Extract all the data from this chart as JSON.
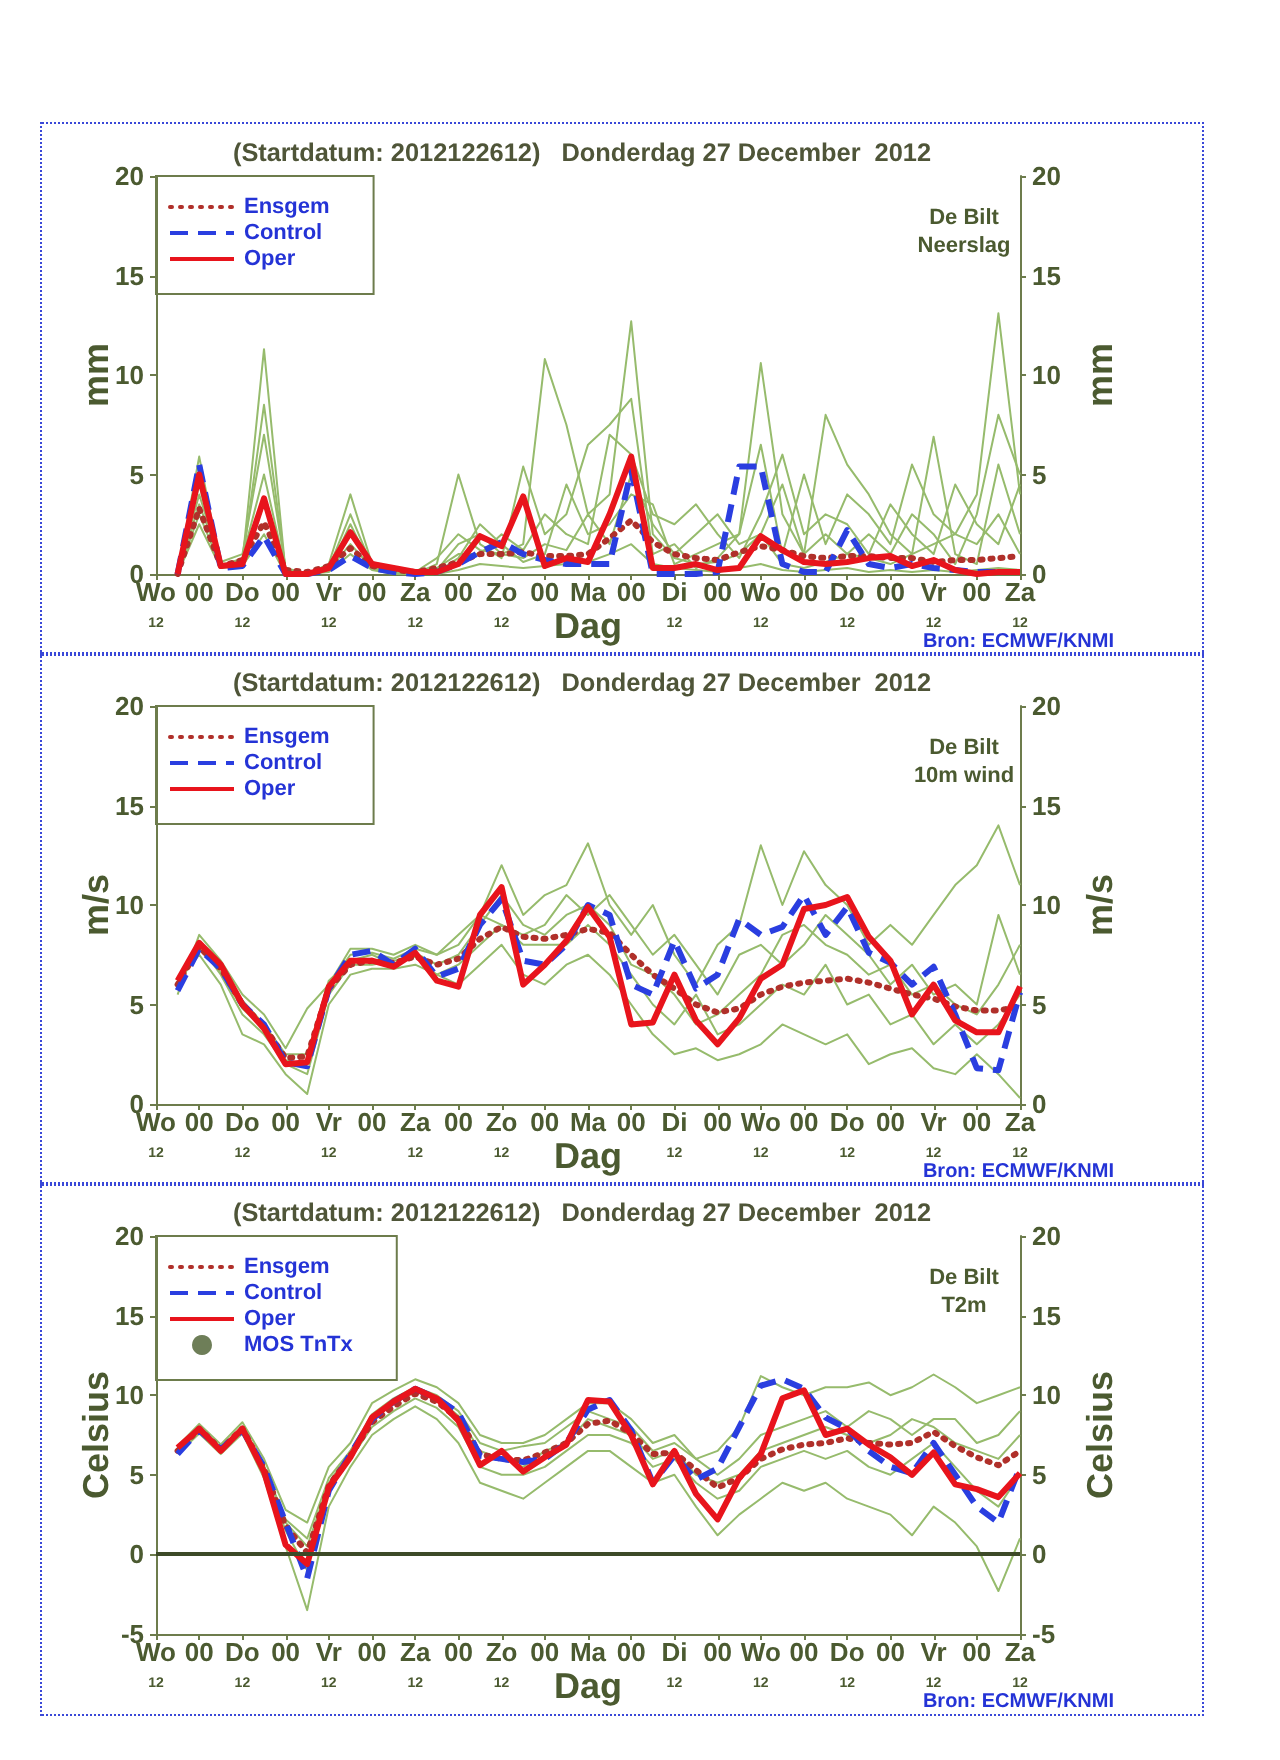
{
  "chart_data": [
    {
      "type": "line",
      "title": "(Startdatum: 2012122612)   Donderdag 27 December  2012",
      "xlabel": "Dag",
      "ylabel": "mm",
      "y2label": "mm",
      "annotations": [
        "De Bilt\nNeerslag",
        "Bron: ECMWF/KNMI"
      ],
      "legend": "top left",
      "marker": "none",
      "line_style": "solid",
      "x": [
        "2012-12-26T18:00",
        "2012-12-27T00:00",
        "2012-12-27T06:00",
        "2012-12-27T12:00",
        "2012-12-27T18:00",
        "2012-12-28T00:00",
        "2012-12-28T06:00",
        "2012-12-28T12:00",
        "2012-12-28T18:00",
        "2012-12-29T00:00",
        "2012-12-29T06:00",
        "2012-12-29T12:00",
        "2012-12-29T18:00",
        "2012-12-30T00:00",
        "2012-12-30T06:00",
        "2012-12-30T12:00",
        "2012-12-30T18:00",
        "2012-12-31T00:00",
        "2012-12-31T06:00",
        "2012-12-31T12:00",
        "2012-12-31T18:00",
        "2013-01-01T00:00",
        "2013-01-01T06:00",
        "2013-01-01T12:00",
        "2013-01-01T18:00",
        "2013-01-02T00:00",
        "2013-01-02T06:00",
        "2013-01-02T12:00",
        "2013-01-02T18:00",
        "2013-01-03T00:00",
        "2013-01-03T06:00",
        "2013-01-03T12:00",
        "2013-01-03T18:00",
        "2013-01-04T00:00",
        "2013-01-04T06:00",
        "2013-01-04T12:00",
        "2013-01-04T18:00",
        "2013-01-05T00:00",
        "2013-01-05T06:00",
        "2013-01-05T12:00"
      ],
      "xlim": [
        "2012-12-26T12:00",
        "2013-01-05T12:00"
      ],
      "xticks": [
        {
          "value": "2012-12-26T12:00",
          "label": "Wo\n12"
        },
        {
          "value": "2012-12-27T00:00",
          "label": "00"
        },
        {
          "value": "2012-12-27T12:00",
          "label": "Do\n12"
        },
        {
          "value": "2012-12-28T00:00",
          "label": "00"
        },
        {
          "value": "2012-12-28T12:00",
          "label": "Vr\n12"
        },
        {
          "value": "2012-12-29T00:00",
          "label": "00"
        },
        {
          "value": "2012-12-29T12:00",
          "label": "Za\n12"
        },
        {
          "value": "2012-12-30T00:00",
          "label": "00"
        },
        {
          "value": "2012-12-30T12:00",
          "label": "Zo\n12"
        },
        {
          "value": "2012-12-31T00:00",
          "label": "00"
        },
        {
          "value": "2012-12-31T12:00",
          "label": "Ma"
        },
        {
          "value": "2013-01-01T00:00",
          "label": "00"
        },
        {
          "value": "2013-01-01T12:00",
          "label": "Di\n12"
        },
        {
          "value": "2013-01-02T00:00",
          "label": "00"
        },
        {
          "value": "2013-01-02T12:00",
          "label": "Wo\n12"
        },
        {
          "value": "2013-01-03T00:00",
          "label": "00"
        },
        {
          "value": "2013-01-03T12:00",
          "label": "Do\n12"
        },
        {
          "value": "2013-01-04T00:00",
          "label": "00"
        },
        {
          "value": "2013-01-04T12:00",
          "label": "Vr\n12"
        },
        {
          "value": "2013-01-05T00:00",
          "label": "00"
        },
        {
          "value": "2013-01-05T12:00",
          "label": "Za\n12"
        }
      ],
      "ylim": [
        0,
        20
      ],
      "yticks": [
        0,
        5,
        10,
        15,
        20
      ],
      "y2lim": [
        0,
        20
      ],
      "y2ticks": [
        0,
        5,
        10,
        15,
        20
      ],
      "series": [
        {
          "color": "#96bb6c",
          "values": [
            0,
            4.5,
            0.3,
            0.6,
            11.3,
            0.1,
            0,
            0.2,
            2.5,
            0.3,
            0.1,
            0,
            0.2,
            1.5,
            2.0,
            1.0,
            1.5,
            10.8,
            7.5,
            3.0,
            4.0,
            12.7,
            2.0,
            0.8,
            0.5,
            0.6,
            1.0,
            2.0,
            0.5,
            0.3,
            0.6,
            1.0,
            0.8,
            0.5,
            1.0,
            1.5,
            2.0,
            4.0,
            13.1,
            4.0
          ]
        },
        {
          "color": "#96bb6c",
          "values": [
            0,
            3.5,
            0.6,
            1.0,
            7.0,
            0.3,
            0,
            0.5,
            4.0,
            0.5,
            0.2,
            0,
            0.5,
            5.0,
            1.5,
            0.8,
            5.4,
            2.0,
            3.0,
            6.5,
            7.5,
            8.8,
            1.0,
            1.5,
            0.3,
            0.8,
            2.0,
            10.6,
            3.0,
            1.0,
            8.0,
            5.5,
            4.0,
            2.0,
            1.0,
            6.9,
            1.0,
            0.5,
            5.5,
            2.0
          ]
        },
        {
          "color": "#96bb6c",
          "values": [
            0,
            5.9,
            0.4,
            0.8,
            5.0,
            0.2,
            0,
            0.3,
            3.0,
            0.4,
            0.1,
            0,
            0.1,
            0.8,
            2.5,
            1.5,
            0.6,
            1.0,
            4.5,
            2.0,
            2.5,
            4.0,
            3.5,
            0.5,
            1.0,
            1.5,
            2.0,
            6.5,
            1.0,
            5.0,
            1.5,
            4.0,
            3.0,
            1.5,
            5.5,
            3.0,
            2.0,
            1.5,
            3.0,
            1.0
          ]
        },
        {
          "color": "#96bb6c",
          "values": [
            0,
            2.5,
            0.3,
            0.4,
            2.0,
            0,
            0,
            0.1,
            1.0,
            0.2,
            0,
            0,
            0,
            0.2,
            0.5,
            0.4,
            0.3,
            0.4,
            0.5,
            0.6,
            1.0,
            1.5,
            0.5,
            0.3,
            0.2,
            0.1,
            0.3,
            0.5,
            0.2,
            0.1,
            0.2,
            0.3,
            0.1,
            0.2,
            0.1,
            0.2,
            0.1,
            0.2,
            0.3,
            0.2
          ]
        },
        {
          "color": "#96bb6c",
          "values": [
            0,
            4.0,
            0.5,
            0.6,
            8.5,
            0.2,
            0,
            0.2,
            1.5,
            0.3,
            0.1,
            0,
            0.3,
            1.0,
            1.0,
            2.0,
            1.2,
            3.0,
            2.0,
            1.5,
            7.0,
            6.0,
            3.0,
            2.5,
            3.5,
            2.0,
            0.8,
            3.0,
            6.0,
            2.0,
            3.0,
            2.5,
            1.0,
            3.5,
            2.0,
            1.0,
            4.5,
            2.5,
            1.5,
            4.5
          ]
        },
        {
          "color": "#96bb6c",
          "values": [
            0,
            3.0,
            0.4,
            0.7,
            3.5,
            0.1,
            0,
            0.4,
            2.0,
            0.6,
            0.3,
            0.1,
            0.8,
            2.0,
            1.2,
            1.0,
            0.8,
            1.5,
            1.2,
            3.0,
            1.5,
            5.0,
            2.5,
            1.0,
            2.0,
            3.0,
            1.5,
            2.0,
            4.5,
            1.0,
            2.0,
            1.0,
            2.0,
            1.0,
            3.0,
            2.0,
            0.5,
            3.0,
            8.0,
            5.0
          ]
        },
        {
          "name": "Ensgem",
          "color": "#b0302a",
          "line_style": "dotted",
          "values": [
            0,
            3.3,
            0.4,
            0.7,
            2.6,
            0.2,
            0.1,
            0.4,
            1.3,
            0.4,
            0.2,
            0.1,
            0.3,
            0.6,
            1.0,
            1.0,
            1.1,
            0.9,
            0.9,
            1.0,
            1.8,
            2.7,
            1.6,
            1.0,
            0.8,
            0.7,
            1.1,
            1.4,
            1.2,
            0.9,
            0.8,
            0.9,
            0.9,
            0.8,
            0.8,
            0.6,
            0.7,
            0.7,
            0.8,
            0.9
          ]
        },
        {
          "name": "Control",
          "color": "#2a3ee0",
          "line_style": "dashed",
          "values": [
            0,
            5.5,
            0.3,
            0.4,
            1.9,
            0,
            0,
            0.2,
            0.9,
            0.3,
            0.1,
            0,
            0.1,
            0.5,
            1.1,
            1.6,
            1.0,
            0.7,
            0.5,
            0.5,
            0.5,
            5.2,
            0,
            0,
            0,
            0.1,
            5.4,
            5.4,
            0.5,
            0.1,
            0.1,
            2.2,
            0.5,
            0.3,
            0.5,
            0.3,
            0.2,
            0.1,
            0.1,
            0.1
          ]
        },
        {
          "name": "Oper",
          "color": "#e8141c",
          "values": [
            0,
            5.0,
            0.4,
            0.5,
            3.8,
            0,
            0,
            0.3,
            2.1,
            0.5,
            0.3,
            0.1,
            0.1,
            0.5,
            1.9,
            1.4,
            3.9,
            0.4,
            0.8,
            0.6,
            3.0,
            5.9,
            0.3,
            0.3,
            0.5,
            0.2,
            0.3,
            1.9,
            1.2,
            0.6,
            0.5,
            0.6,
            0.8,
            0.9,
            0.4,
            0.7,
            0.2,
            0,
            0.1,
            0.1
          ]
        }
      ]
    },
    {
      "type": "line",
      "title": "(Startdatum: 2012122612)   Donderdag 27 December  2012",
      "xlabel": "Dag",
      "ylabel": "m/s",
      "y2label": "m/s",
      "annotations": [
        "De Bilt\n10m wind",
        "Bron: ECMWF/KNMI"
      ],
      "legend": "top left",
      "marker": "none",
      "line_style": "solid",
      "x": [
        "2012-12-26T18:00",
        "2012-12-27T00:00",
        "2012-12-27T06:00",
        "2012-12-27T12:00",
        "2012-12-27T18:00",
        "2012-12-28T00:00",
        "2012-12-28T06:00",
        "2012-12-28T12:00",
        "2012-12-28T18:00",
        "2012-12-29T00:00",
        "2012-12-29T06:00",
        "2012-12-29T12:00",
        "2012-12-29T18:00",
        "2012-12-30T00:00",
        "2012-12-30T06:00",
        "2012-12-30T12:00",
        "2012-12-30T18:00",
        "2012-12-31T00:00",
        "2012-12-31T06:00",
        "2012-12-31T12:00",
        "2012-12-31T18:00",
        "2013-01-01T00:00",
        "2013-01-01T06:00",
        "2013-01-01T12:00",
        "2013-01-01T18:00",
        "2013-01-02T00:00",
        "2013-01-02T06:00",
        "2013-01-02T12:00",
        "2013-01-02T18:00",
        "2013-01-03T00:00",
        "2013-01-03T06:00",
        "2013-01-03T12:00",
        "2013-01-03T18:00",
        "2013-01-04T00:00",
        "2013-01-04T06:00",
        "2013-01-04T12:00",
        "2013-01-04T18:00",
        "2013-01-05T00:00",
        "2013-01-05T06:00",
        "2013-01-05T12:00"
      ],
      "xlim": [
        "2012-12-26T12:00",
        "2013-01-05T12:00"
      ],
      "xticks": [
        {
          "value": "2012-12-26T12:00",
          "label": "Wo\n12"
        },
        {
          "value": "2012-12-27T00:00",
          "label": "00"
        },
        {
          "value": "2012-12-27T12:00",
          "label": "Do\n12"
        },
        {
          "value": "2012-12-28T00:00",
          "label": "00"
        },
        {
          "value": "2012-12-28T12:00",
          "label": "Vr\n12"
        },
        {
          "value": "2012-12-29T00:00",
          "label": "00"
        },
        {
          "value": "2012-12-29T12:00",
          "label": "Za\n12"
        },
        {
          "value": "2012-12-30T00:00",
          "label": "00"
        },
        {
          "value": "2012-12-30T12:00",
          "label": "Zo\n12"
        },
        {
          "value": "2012-12-31T00:00",
          "label": "00"
        },
        {
          "value": "2012-12-31T12:00",
          "label": "Ma"
        },
        {
          "value": "2013-01-01T00:00",
          "label": "00"
        },
        {
          "value": "2013-01-01T12:00",
          "label": "Di\n12"
        },
        {
          "value": "2013-01-02T00:00",
          "label": "00"
        },
        {
          "value": "2013-01-02T12:00",
          "label": "Wo\n12"
        },
        {
          "value": "2013-01-03T00:00",
          "label": "00"
        },
        {
          "value": "2013-01-03T12:00",
          "label": "Do\n12"
        },
        {
          "value": "2013-01-04T00:00",
          "label": "00"
        },
        {
          "value": "2013-01-04T12:00",
          "label": "Vr\n12"
        },
        {
          "value": "2013-01-05T00:00",
          "label": "00"
        },
        {
          "value": "2013-01-05T12:00",
          "label": "Za\n12"
        }
      ],
      "ylim": [
        0,
        20
      ],
      "yticks": [
        0,
        5,
        10,
        15,
        20
      ],
      "y2lim": [
        0,
        20
      ],
      "y2ticks": [
        0,
        5,
        10,
        15,
        20
      ],
      "series": [
        {
          "color": "#96bb6c",
          "values": [
            5.5,
            8.5,
            7.2,
            5.5,
            4.5,
            2.8,
            4.8,
            6.0,
            7.8,
            7.8,
            7.5,
            8.0,
            7.5,
            8.0,
            9.5,
            12.0,
            9.5,
            10.5,
            11.0,
            13.1,
            10.0,
            8.5,
            10.0,
            7.5,
            6.0,
            8.0,
            9.0,
            13.0,
            10.0,
            12.7,
            11.0,
            10.0,
            8.0,
            9.0,
            8.0,
            9.5,
            11.0,
            12.0,
            14.0,
            11.0
          ]
        },
        {
          "color": "#96bb6c",
          "values": [
            6.2,
            7.5,
            6.0,
            3.5,
            3.0,
            1.5,
            0.5,
            5.0,
            6.5,
            6.8,
            6.8,
            7.0,
            6.5,
            6.0,
            7.0,
            8.0,
            6.5,
            6.0,
            7.0,
            7.5,
            6.5,
            5.0,
            3.5,
            2.5,
            2.8,
            2.2,
            2.5,
            3.0,
            4.0,
            3.5,
            3.0,
            3.5,
            2.0,
            2.5,
            2.8,
            1.8,
            1.5,
            2.5,
            1.5,
            0.3
          ]
        },
        {
          "color": "#96bb6c",
          "values": [
            6.0,
            8.2,
            7.0,
            5.2,
            4.0,
            2.5,
            2.5,
            6.2,
            7.2,
            7.5,
            7.0,
            7.6,
            7.0,
            7.5,
            9.0,
            10.5,
            9.0,
            8.5,
            9.5,
            10.0,
            9.0,
            7.0,
            6.5,
            5.5,
            4.0,
            4.5,
            5.5,
            6.5,
            8.5,
            9.0,
            8.0,
            7.5,
            6.5,
            7.0,
            5.5,
            6.0,
            5.0,
            4.5,
            6.0,
            8.0
          ]
        },
        {
          "color": "#96bb6c",
          "values": [
            5.8,
            8.0,
            6.5,
            4.5,
            3.5,
            2.0,
            1.5,
            5.5,
            7.0,
            7.0,
            7.2,
            7.4,
            6.5,
            7.0,
            8.0,
            9.0,
            8.0,
            8.0,
            8.0,
            9.0,
            8.0,
            6.5,
            5.0,
            4.0,
            5.5,
            3.5,
            4.0,
            5.0,
            6.0,
            5.5,
            7.0,
            5.0,
            5.5,
            4.0,
            4.5,
            3.0,
            4.0,
            3.0,
            4.0,
            5.5
          ]
        },
        {
          "color": "#96bb6c",
          "values": [
            6.1,
            7.8,
            6.6,
            4.8,
            3.8,
            2.2,
            2.0,
            6.0,
            7.5,
            7.6,
            7.3,
            7.8,
            7.5,
            8.5,
            9.5,
            9.0,
            8.5,
            9.0,
            10.5,
            9.5,
            10.5,
            9.0,
            7.5,
            8.5,
            7.0,
            5.5,
            7.5,
            8.0,
            7.0,
            8.0,
            9.5,
            8.5,
            7.5,
            6.0,
            7.0,
            5.5,
            6.0,
            5.0,
            9.5,
            6.5
          ]
        },
        {
          "name": "Ensgem",
          "color": "#b0302a",
          "line_style": "dotted",
          "values": [
            6.0,
            7.9,
            6.8,
            5.0,
            3.9,
            2.3,
            2.4,
            5.8,
            7.0,
            7.2,
            7.1,
            7.4,
            7.0,
            7.3,
            8.3,
            8.9,
            8.4,
            8.3,
            8.5,
            8.8,
            8.6,
            7.5,
            6.5,
            5.8,
            5.0,
            4.6,
            4.8,
            5.5,
            5.9,
            6.1,
            6.2,
            6.3,
            6.1,
            5.8,
            5.5,
            5.3,
            4.9,
            4.7,
            4.7,
            4.9
          ]
        },
        {
          "name": "Control",
          "color": "#2a3ee0",
          "line_style": "dashed",
          "values": [
            5.7,
            7.8,
            6.8,
            5.0,
            4.0,
            2.1,
            1.9,
            5.8,
            7.5,
            7.7,
            7.0,
            7.8,
            6.4,
            6.8,
            9.0,
            10.3,
            7.2,
            7.0,
            8.0,
            10.0,
            9.5,
            6.0,
            5.5,
            8.2,
            5.8,
            6.5,
            9.3,
            8.5,
            8.9,
            10.5,
            8.5,
            9.9,
            7.6,
            7.1,
            6.0,
            6.9,
            4.5,
            1.8,
            1.7,
            5.6
          ]
        },
        {
          "name": "Oper",
          "color": "#e8141c",
          "values": [
            6.2,
            8.1,
            7.0,
            5.0,
            3.8,
            2.0,
            2.1,
            5.9,
            7.2,
            7.2,
            6.9,
            7.6,
            6.2,
            5.9,
            9.5,
            10.9,
            6.0,
            7.0,
            8.2,
            9.9,
            8.4,
            4.0,
            4.1,
            6.5,
            4.2,
            3.0,
            4.3,
            6.3,
            7.0,
            9.8,
            10.0,
            10.4,
            8.4,
            7.2,
            4.5,
            6.0,
            4.2,
            3.6,
            3.6,
            5.9
          ]
        }
      ]
    },
    {
      "type": "line",
      "title": "(Startdatum: 2012122612)   Donderdag 27 December  2012",
      "xlabel": "Dag",
      "ylabel": "Celsius",
      "y2label": "Celsius",
      "annotations": [
        "De Bilt\nT2m",
        "Bron: ECMWF/KNMI"
      ],
      "legend": "top left",
      "marker": "none",
      "line_style": "solid",
      "x": [
        "2012-12-26T18:00",
        "2012-12-27T00:00",
        "2012-12-27T06:00",
        "2012-12-27T12:00",
        "2012-12-27T18:00",
        "2012-12-28T00:00",
        "2012-12-28T06:00",
        "2012-12-28T12:00",
        "2012-12-28T18:00",
        "2012-12-29T00:00",
        "2012-12-29T06:00",
        "2012-12-29T12:00",
        "2012-12-29T18:00",
        "2012-12-30T00:00",
        "2012-12-30T06:00",
        "2012-12-30T12:00",
        "2012-12-30T18:00",
        "2012-12-31T00:00",
        "2012-12-31T06:00",
        "2012-12-31T12:00",
        "2012-12-31T18:00",
        "2013-01-01T00:00",
        "2013-01-01T06:00",
        "2013-01-01T12:00",
        "2013-01-01T18:00",
        "2013-01-02T00:00",
        "2013-01-02T06:00",
        "2013-01-02T12:00",
        "2013-01-02T18:00",
        "2013-01-03T00:00",
        "2013-01-03T06:00",
        "2013-01-03T12:00",
        "2013-01-03T18:00",
        "2013-01-04T00:00",
        "2013-01-04T06:00",
        "2013-01-04T12:00",
        "2013-01-04T18:00",
        "2013-01-05T00:00",
        "2013-01-05T06:00",
        "2013-01-05T12:00"
      ],
      "xlim": [
        "2012-12-26T12:00",
        "2013-01-05T12:00"
      ],
      "xticks": [
        {
          "value": "2012-12-26T12:00",
          "label": "Wo\n12"
        },
        {
          "value": "2012-12-27T00:00",
          "label": "00"
        },
        {
          "value": "2012-12-27T12:00",
          "label": "Do\n12"
        },
        {
          "value": "2012-12-28T00:00",
          "label": "00"
        },
        {
          "value": "2012-12-28T12:00",
          "label": "Vr\n12"
        },
        {
          "value": "2012-12-29T00:00",
          "label": "00"
        },
        {
          "value": "2012-12-29T12:00",
          "label": "Za\n12"
        },
        {
          "value": "2012-12-30T00:00",
          "label": "00"
        },
        {
          "value": "2012-12-30T12:00",
          "label": "Zo\n12"
        },
        {
          "value": "2012-12-31T00:00",
          "label": "00"
        },
        {
          "value": "2012-12-31T12:00",
          "label": "Ma"
        },
        {
          "value": "2013-01-01T00:00",
          "label": "00"
        },
        {
          "value": "2013-01-01T12:00",
          "label": "Di\n12"
        },
        {
          "value": "2013-01-02T00:00",
          "label": "00"
        },
        {
          "value": "2013-01-02T12:00",
          "label": "Wo\n12"
        },
        {
          "value": "2013-01-03T00:00",
          "label": "00"
        },
        {
          "value": "2013-01-03T12:00",
          "label": "Do\n12"
        },
        {
          "value": "2013-01-04T00:00",
          "label": "00"
        },
        {
          "value": "2013-01-04T12:00",
          "label": "Vr\n12"
        },
        {
          "value": "2013-01-05T00:00",
          "label": "00"
        },
        {
          "value": "2013-01-05T12:00",
          "label": "Za\n12"
        }
      ],
      "ylim": [
        -5,
        20
      ],
      "yticks": [
        -5,
        0,
        5,
        10,
        15,
        20
      ],
      "y2lim": [
        -5,
        20
      ],
      "y2ticks": [
        -5,
        0,
        5,
        10,
        15,
        20
      ],
      "ref_lines": [
        {
          "axis": "y",
          "value": 0,
          "color": "#3d4a28"
        }
      ],
      "series": [
        {
          "color": "#96bb6c",
          "values": [
            6.8,
            8.2,
            6.9,
            8.3,
            6.0,
            2.8,
            2.0,
            5.5,
            7.0,
            9.5,
            10.3,
            11.0,
            10.5,
            9.5,
            7.5,
            7.0,
            7.0,
            7.5,
            8.5,
            9.5,
            9.5,
            8.5,
            7.0,
            7.5,
            6.0,
            6.5,
            8.0,
            11.2,
            10.5,
            10.0,
            10.5,
            10.5,
            10.8,
            10.0,
            10.5,
            11.3,
            10.5,
            9.5,
            10.0,
            10.5
          ]
        },
        {
          "color": "#96bb6c",
          "values": [
            6.3,
            7.6,
            6.3,
            7.6,
            4.8,
            0.5,
            -3.5,
            3.0,
            5.5,
            7.5,
            8.5,
            9.3,
            8.5,
            7.0,
            4.5,
            4.0,
            3.5,
            4.5,
            5.5,
            6.5,
            6.5,
            5.5,
            4.5,
            5.0,
            3.0,
            1.2,
            2.5,
            3.5,
            4.5,
            4.0,
            4.5,
            3.5,
            3.0,
            2.5,
            1.2,
            3.0,
            2.0,
            0.5,
            -2.3,
            1.0
          ]
        },
        {
          "color": "#96bb6c",
          "values": [
            6.6,
            8.0,
            6.7,
            8.0,
            5.6,
            2.0,
            0.5,
            4.5,
            6.5,
            8.8,
            9.8,
            10.5,
            10.0,
            9.0,
            7.0,
            6.5,
            6.8,
            7.0,
            8.0,
            9.0,
            8.5,
            8.0,
            6.5,
            7.0,
            6.0,
            5.0,
            6.0,
            7.5,
            8.0,
            8.5,
            9.0,
            8.0,
            9.0,
            8.5,
            7.5,
            8.5,
            8.5,
            7.0,
            7.5,
            9.0
          ]
        },
        {
          "color": "#96bb6c",
          "values": [
            6.4,
            7.8,
            6.5,
            7.8,
            5.2,
            1.5,
            -1.0,
            4.0,
            6.0,
            8.0,
            9.0,
            9.8,
            9.2,
            8.0,
            5.5,
            5.0,
            5.0,
            5.5,
            6.5,
            7.5,
            7.5,
            7.0,
            5.5,
            6.0,
            4.5,
            3.5,
            4.0,
            5.5,
            6.0,
            6.5,
            6.0,
            6.5,
            5.5,
            5.0,
            6.0,
            7.0,
            5.5,
            4.0,
            3.0,
            5.0
          ]
        },
        {
          "color": "#96bb6c",
          "values": [
            6.5,
            8.0,
            6.6,
            7.9,
            5.5,
            2.2,
            1.0,
            4.8,
            6.5,
            8.5,
            9.5,
            10.2,
            9.8,
            8.7,
            6.5,
            6.0,
            5.5,
            6.5,
            7.0,
            8.5,
            8.0,
            7.5,
            6.0,
            6.5,
            5.0,
            4.5,
            5.0,
            6.5,
            7.0,
            7.5,
            8.0,
            7.5,
            7.0,
            7.5,
            8.5,
            8.0,
            7.0,
            6.5,
            6.0,
            7.5
          ]
        },
        {
          "name": "Ensgem",
          "color": "#b0302a",
          "line_style": "dotted",
          "values": [
            6.5,
            7.9,
            6.6,
            7.9,
            5.4,
            1.8,
            0.1,
            4.3,
            6.2,
            8.3,
            9.3,
            10.1,
            9.6,
            8.5,
            6.3,
            6.0,
            5.9,
            6.4,
            7.0,
            8.2,
            8.4,
            7.6,
            6.3,
            6.4,
            5.3,
            4.2,
            4.8,
            6.0,
            6.6,
            6.9,
            7.0,
            7.3,
            7.0,
            6.9,
            7.0,
            7.7,
            6.8,
            6.1,
            5.6,
            6.5
          ]
        },
        {
          "name": "Control",
          "color": "#2a3ee0",
          "line_style": "dashed",
          "values": [
            6.3,
            7.8,
            6.6,
            7.8,
            5.5,
            2.0,
            -1.5,
            4.0,
            6.3,
            8.5,
            9.6,
            10.4,
            9.8,
            8.9,
            6.2,
            6.0,
            5.8,
            6.0,
            7.0,
            9.1,
            9.7,
            7.8,
            4.5,
            6.2,
            4.7,
            5.4,
            8.0,
            10.6,
            11.0,
            10.4,
            8.6,
            7.9,
            6.5,
            5.5,
            5.1,
            7.0,
            5.0,
            3.0,
            2.0,
            5.5
          ]
        },
        {
          "name": "Oper",
          "color": "#e8141c",
          "values": [
            6.7,
            7.9,
            6.5,
            7.9,
            5.2,
            0.6,
            -0.6,
            4.2,
            6.1,
            8.6,
            9.6,
            10.4,
            9.8,
            8.4,
            5.6,
            6.5,
            5.2,
            6.1,
            6.9,
            9.7,
            9.6,
            7.5,
            4.4,
            6.5,
            3.8,
            2.2,
            4.8,
            6.3,
            9.8,
            10.3,
            7.5,
            7.9,
            6.9,
            6.1,
            5.0,
            6.4,
            4.4,
            4.1,
            3.6,
            5.1
          ]
        },
        {
          "name": "MOS TnTx",
          "type": "scatter",
          "color": "#4a5e2e",
          "marker": "circle",
          "values": [
            null,
            null,
            null,
            null,
            null,
            null,
            null,
            null,
            null,
            null,
            null,
            null,
            null,
            null,
            null,
            null,
            null,
            null,
            null,
            null,
            null,
            null,
            null,
            null,
            null,
            null,
            null,
            null,
            null,
            null,
            null,
            null,
            null,
            null,
            null,
            null,
            null,
            null,
            null,
            null
          ]
        }
      ]
    }
  ]
}
